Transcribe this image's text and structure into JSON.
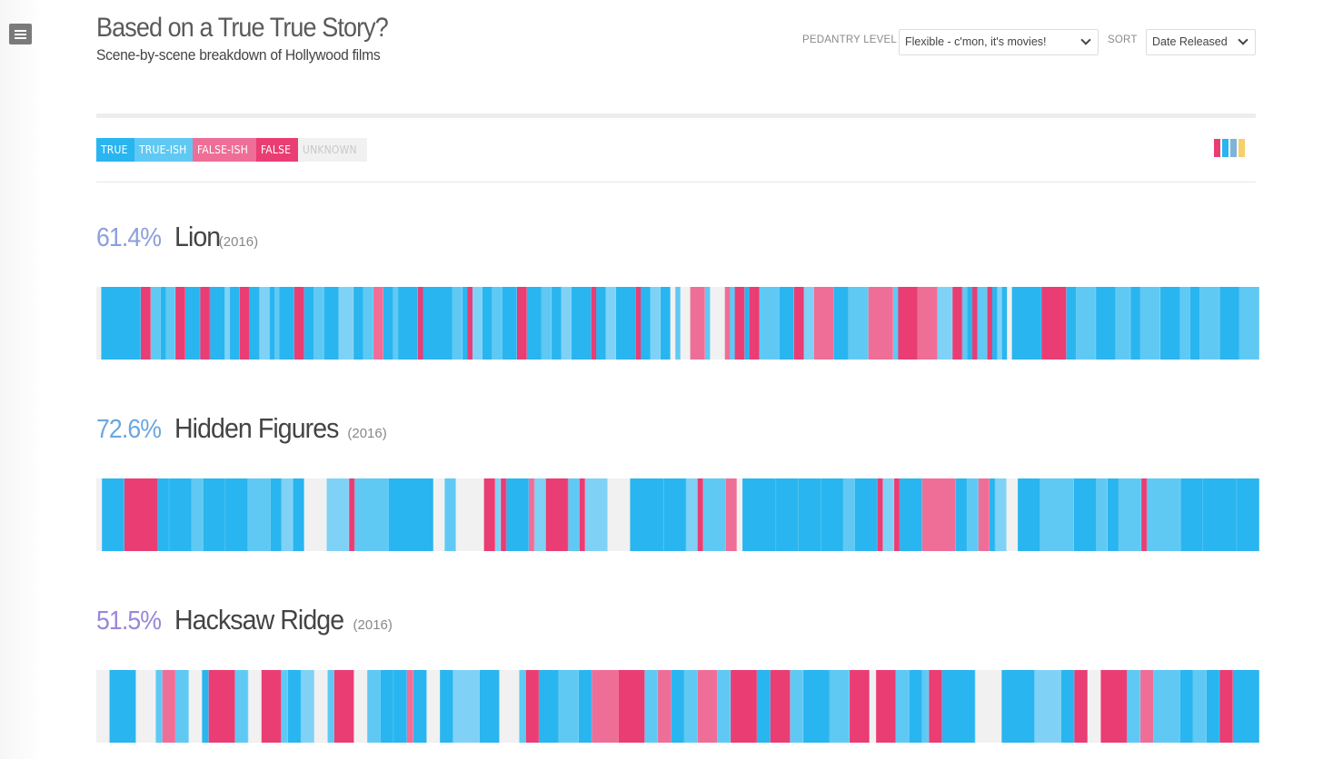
{
  "app": {
    "title": "Based on a True True Story?",
    "subtitle": "Scene-by-scene breakdown of Hollywood films",
    "menu_icon": "hamburger-menu-icon"
  },
  "controls": {
    "pedantry_label": "PEDANTRY LEVEL",
    "pedantry_value": "Flexible - c'mon, it's movies!",
    "sort_label": "SORT",
    "sort_value": "Date Released"
  },
  "legend": [
    {
      "label": "TRUE",
      "color": "#29b5ef"
    },
    {
      "label": "TRUE-ISH",
      "color": "#5fc9f4"
    },
    {
      "label": "FALSE-ISH",
      "color": "#ef6e98"
    },
    {
      "label": "FALSE",
      "color": "#e93d74"
    },
    {
      "label": "UNKNOWN",
      "color": "#f1f1f1"
    }
  ],
  "view_toggle_colors": [
    "#e93d74",
    "#29b5ef",
    "#7fb3d8",
    "#f5d06a"
  ],
  "films": [
    {
      "pct": "61.4%",
      "pct_color": "#8c9fdc",
      "title": "Lion",
      "year": "(2016)",
      "scenes": "U:0.5,T:4,F:1,I:1,T:0.5,I:1,F:1,T:1.5,F:1,T:1.5,I:0.5,T:1,F:1,T:1,I:1,T:0.5,I:0.5,T:1.5,F:1,T:1,I:1,T:1.5,I:1.5,T:1,I:1,F:1,T:1,I:0.5,T:2,F:0.5,T:3,I:1,T:0.5,F:0.5,I:1,T:1,I:1,T:1.5,F:1,T:1.5,I:1,T:1,I:1,T:2,F:0.5,T:1,I:1,T:2,F:0.5,T:1,I:1,T:1,U:0.5,I:0.5,U:1,F:1.5,I:0.5,U:1.5,F:0.5,I:0.5,F:1,T:0.5,F:1,I:2,T:1.5,F:1,I:1,F:2,T:1.5,I:2,F:2.5,I:0.5,F:2,F:2,I:1.5,F:1,I:0.5,T:0.5,F:0.5,I:1,F:0.5,T:0.5,I:0.5,T:0.5,U:0.5,T:3,F:0.5,F:2,T:1,I:2,T:2,I:1.5,T:1,I:2,T:2,I:1,T:1,I:2,T:2,I:2"
    },
    {
      "pct": "72.6%",
      "pct_color": "#6ba6e0",
      "title": "Hidden Figures",
      "year": "(2016)",
      "scenes": "U:0.5,T:2,F:3,T:1,T:2,I:1,T:2,T:2,I:2,T:1,I:1,T:1,U:1,U:1,I:2,F:0.5,I:3,T:4,U:1,I:1,U:2.5,F:1,I:0.5,F:0.5,T:2,F:0.5,I:1,F:2,I:1,F:0.5,I:2,U:2,T:3,T:2,I:1,F:0.5,I:2,F:1,U:0.5,T:3,T:2,T:2,T:2,I:1,T:2,F:0.5,I:1,F:0.5,T:2,F:3,T:1,I:1,F:1,T:0.5,I:1,U:1,T:2,I:3,T:2,I:1,T:1,I:2,F:0.5,I:3,T:2,T:3,T:2"
    },
    {
      "pct": "51.5%",
      "pct_color": "#9a86d8",
      "title": "Hacksaw Ridge",
      "year": "(2016)",
      "scenes": "U:1,T:2,U:1.5,I:0.5,F:1,I:1,U:1,T:0.5,F:2,I:1,U:1,F:1.5,I:0.5,T:1,I:1,U:1,I:0.5,F:1.5,U:1,I:1,T:1,T:1,F:0.5,T:1,U:1,T:1,I:2,T:1.5,U:1.5,I:0.5,F:1,T:1.5,I:1.5,T:1,F:2,F:2,I:1,F:1,T:1,I:1,F:1.5,I:1,F:2,T:1,F:1.5,I:1,T:2,I:1.5,F:1.5,U:0.5,F:1.5,I:1,T:1,I:0.5,F:1,T:2.5,U:2,T:2.5,I:2,T:1,F:1,U:1,F:2,I:1,F:1,I:2,T:1,I:1,T:1,F:1,T:2"
    }
  ]
}
